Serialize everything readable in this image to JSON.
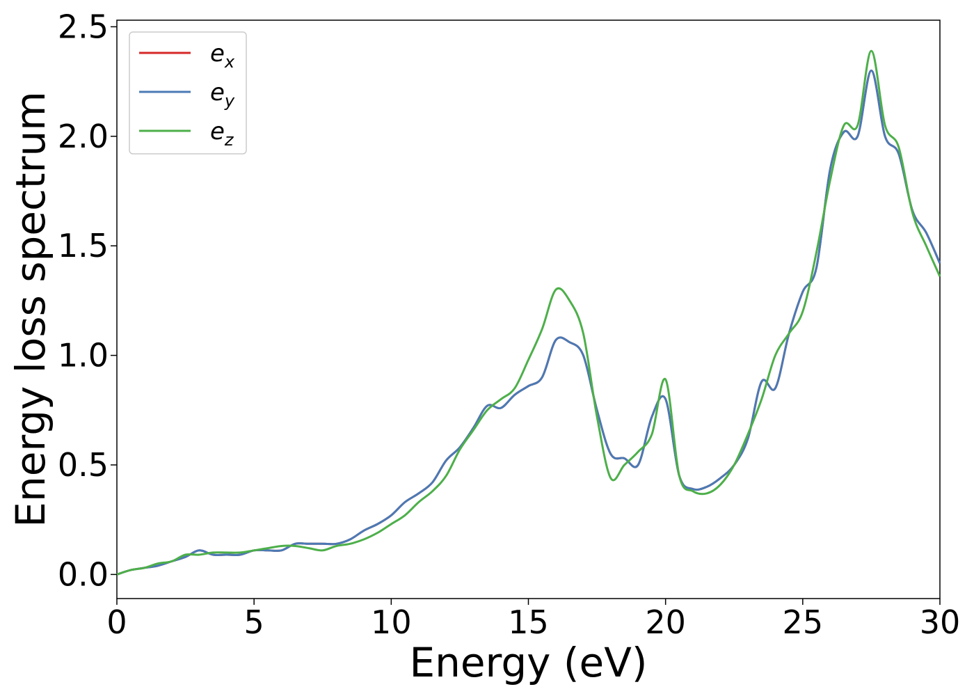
{
  "chart_data": {
    "type": "line",
    "xlabel": "Energy (eV)",
    "ylabel": "Energy loss spectrum",
    "xlim": [
      0,
      30
    ],
    "ylim": [
      -0.11,
      2.53
    ],
    "xticks": [
      0,
      5,
      10,
      15,
      20,
      25,
      30
    ],
    "xtick_labels": [
      "0",
      "5",
      "10",
      "15",
      "20",
      "25",
      "30"
    ],
    "yticks": [
      0.0,
      0.5,
      1.0,
      1.5,
      2.0,
      2.5
    ],
    "ytick_labels": [
      "0.0",
      "0.5",
      "1.0",
      "1.5",
      "2.0",
      "2.5"
    ],
    "grid": false,
    "legend_position": "top-left",
    "series": [
      {
        "name": "ex",
        "label_base": "e",
        "label_sub": "x",
        "color": "#d62728",
        "x": [
          0,
          0.5,
          1,
          1.5,
          2,
          2.5,
          3,
          3.5,
          4,
          4.5,
          5,
          5.5,
          6,
          6.5,
          7,
          7.5,
          8,
          8.5,
          9,
          9.5,
          10,
          10.5,
          11,
          11.5,
          12,
          12.5,
          13,
          13.5,
          14,
          14.5,
          15,
          15.5,
          16,
          16.5,
          17,
          17.5,
          18,
          18.5,
          19,
          19.5,
          20,
          20.5,
          21,
          21.5,
          22,
          22.5,
          23,
          23.5,
          24,
          24.5,
          25,
          25.5,
          26,
          26.5,
          27,
          27.5,
          28,
          28.5,
          29,
          29.5,
          30
        ],
        "y": [
          0.0,
          0.02,
          0.03,
          0.04,
          0.06,
          0.08,
          0.11,
          0.09,
          0.09,
          0.09,
          0.11,
          0.11,
          0.11,
          0.14,
          0.14,
          0.14,
          0.14,
          0.16,
          0.2,
          0.23,
          0.27,
          0.33,
          0.37,
          0.42,
          0.52,
          0.58,
          0.67,
          0.77,
          0.76,
          0.82,
          0.86,
          0.9,
          1.07,
          1.06,
          1.0,
          0.75,
          0.55,
          0.53,
          0.5,
          0.72,
          0.8,
          0.45,
          0.39,
          0.4,
          0.44,
          0.5,
          0.62,
          0.88,
          0.85,
          1.1,
          1.29,
          1.4,
          1.85,
          2.02,
          2.0,
          2.3,
          2.0,
          1.92,
          1.66,
          1.56,
          1.42
        ]
      },
      {
        "name": "ey",
        "label_base": "e",
        "label_sub": "y",
        "color": "#4a7ab5",
        "x": [
          0,
          0.5,
          1,
          1.5,
          2,
          2.5,
          3,
          3.5,
          4,
          4.5,
          5,
          5.5,
          6,
          6.5,
          7,
          7.5,
          8,
          8.5,
          9,
          9.5,
          10,
          10.5,
          11,
          11.5,
          12,
          12.5,
          13,
          13.5,
          14,
          14.5,
          15,
          15.5,
          16,
          16.5,
          17,
          17.5,
          18,
          18.5,
          19,
          19.5,
          20,
          20.5,
          21,
          21.5,
          22,
          22.5,
          23,
          23.5,
          24,
          24.5,
          25,
          25.5,
          26,
          26.5,
          27,
          27.5,
          28,
          28.5,
          29,
          29.5,
          30
        ],
        "y": [
          0.0,
          0.02,
          0.03,
          0.04,
          0.06,
          0.08,
          0.11,
          0.09,
          0.09,
          0.09,
          0.11,
          0.11,
          0.11,
          0.14,
          0.14,
          0.14,
          0.14,
          0.16,
          0.2,
          0.23,
          0.27,
          0.33,
          0.37,
          0.42,
          0.52,
          0.58,
          0.67,
          0.77,
          0.76,
          0.82,
          0.86,
          0.9,
          1.07,
          1.06,
          1.0,
          0.75,
          0.55,
          0.53,
          0.5,
          0.72,
          0.8,
          0.45,
          0.39,
          0.4,
          0.44,
          0.5,
          0.62,
          0.88,
          0.85,
          1.1,
          1.29,
          1.4,
          1.85,
          2.02,
          2.0,
          2.3,
          2.0,
          1.92,
          1.66,
          1.56,
          1.42
        ]
      },
      {
        "name": "ez",
        "label_base": "e",
        "label_sub": "z",
        "color": "#4daf4a",
        "x": [
          0,
          0.5,
          1,
          1.5,
          2,
          2.5,
          3,
          3.5,
          4,
          4.5,
          5,
          5.5,
          6,
          6.5,
          7,
          7.5,
          8,
          8.5,
          9,
          9.5,
          10,
          10.5,
          11,
          11.5,
          12,
          12.5,
          13,
          13.5,
          14,
          14.5,
          15,
          15.5,
          16,
          16.5,
          17,
          17.5,
          18,
          18.5,
          19,
          19.5,
          20,
          20.5,
          21,
          21.5,
          22,
          22.5,
          23,
          23.5,
          24,
          24.5,
          25,
          25.5,
          26,
          26.5,
          27,
          27.5,
          28,
          28.5,
          29,
          29.5,
          30
        ],
        "y": [
          0.0,
          0.02,
          0.03,
          0.05,
          0.06,
          0.09,
          0.09,
          0.1,
          0.1,
          0.1,
          0.11,
          0.12,
          0.13,
          0.13,
          0.12,
          0.11,
          0.13,
          0.14,
          0.16,
          0.19,
          0.23,
          0.27,
          0.33,
          0.38,
          0.45,
          0.57,
          0.66,
          0.75,
          0.8,
          0.85,
          0.98,
          1.12,
          1.3,
          1.25,
          1.1,
          0.72,
          0.44,
          0.5,
          0.56,
          0.64,
          0.89,
          0.45,
          0.38,
          0.37,
          0.41,
          0.5,
          0.64,
          0.8,
          1.0,
          1.1,
          1.2,
          1.47,
          1.8,
          2.05,
          2.05,
          2.39,
          2.05,
          1.95,
          1.65,
          1.5,
          1.36
        ]
      }
    ]
  }
}
